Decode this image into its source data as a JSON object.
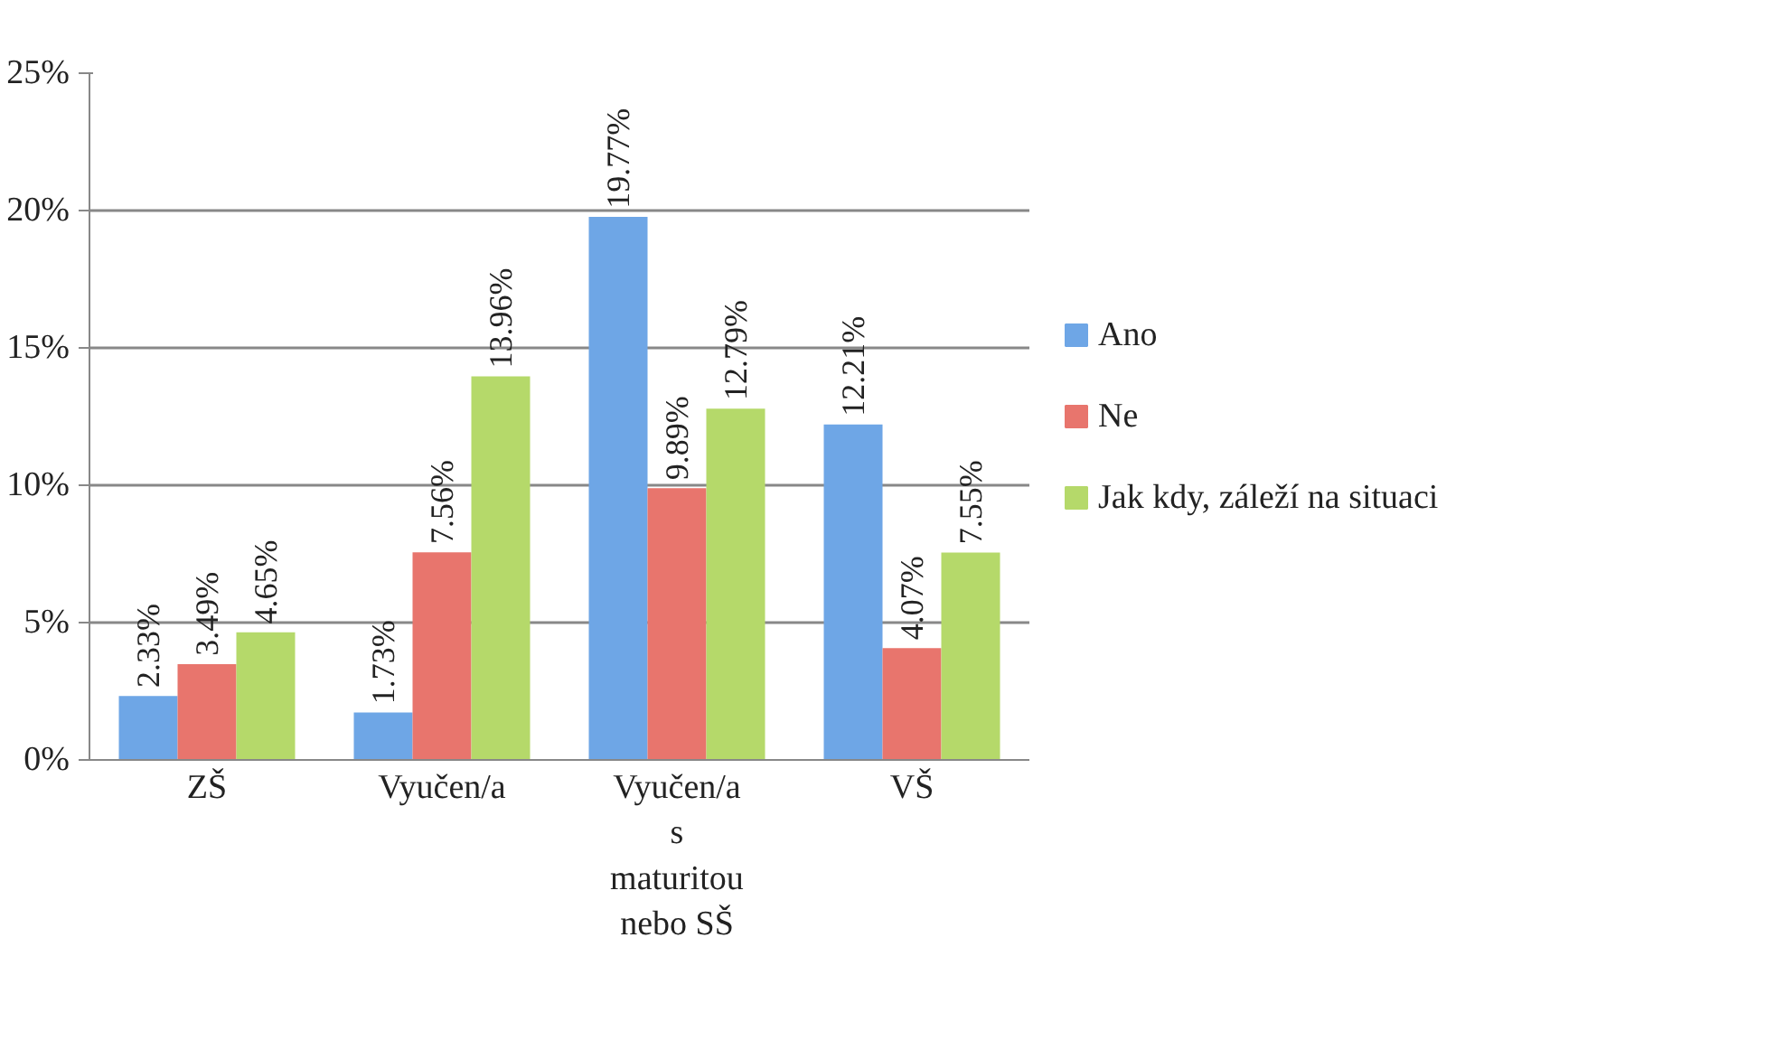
{
  "chart_data": {
    "type": "bar",
    "categories": [
      "ZŠ",
      "Vyučen/a",
      "Vyučen/a s maturitou nebo SŠ",
      "VŠ"
    ],
    "series": [
      {
        "name": "Ano",
        "color": "#6ea6e6",
        "values": [
          2.33,
          1.73,
          19.77,
          12.21
        ],
        "value_labels": [
          "2.33%",
          "1.73%",
          "19.77%",
          "12.21%"
        ]
      },
      {
        "name": "Ne",
        "color": "#e8756d",
        "values": [
          3.49,
          7.56,
          9.89,
          4.07
        ],
        "value_labels": [
          "3.49%",
          "7.56%",
          "9.89%",
          "4.07%"
        ]
      },
      {
        "name": "Jak kdy, záleží na situaci",
        "color": "#b5d96a",
        "values": [
          4.65,
          13.96,
          12.79,
          7.55
        ],
        "value_labels": [
          "4.65%",
          "13.96%",
          "12.79%",
          "7.55%"
        ]
      }
    ],
    "ylim": [
      0,
      25
    ],
    "yticks": [
      {
        "value": 0,
        "label": "0%"
      },
      {
        "value": 5,
        "label": "5%"
      },
      {
        "value": 10,
        "label": "10%"
      },
      {
        "value": 15,
        "label": "15%"
      },
      {
        "value": 20,
        "label": "20%"
      },
      {
        "value": 25,
        "label": "25%"
      }
    ],
    "grid": "y",
    "legend": "right"
  }
}
